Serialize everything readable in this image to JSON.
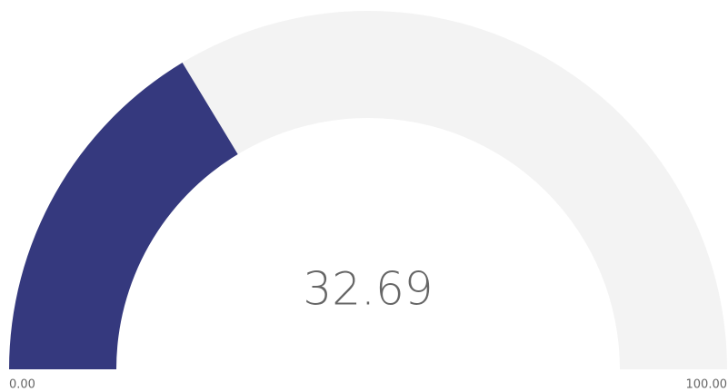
{
  "chart_data": {
    "type": "gauge",
    "values": [
      32.69
    ],
    "color": "#35397e",
    "track_color": "#f3f3f3",
    "ylim": [
      0,
      100
    ],
    "yticks": [
      {
        "value": 0,
        "label": "0.00"
      },
      {
        "value": 100,
        "label": "100.00"
      }
    ]
  }
}
